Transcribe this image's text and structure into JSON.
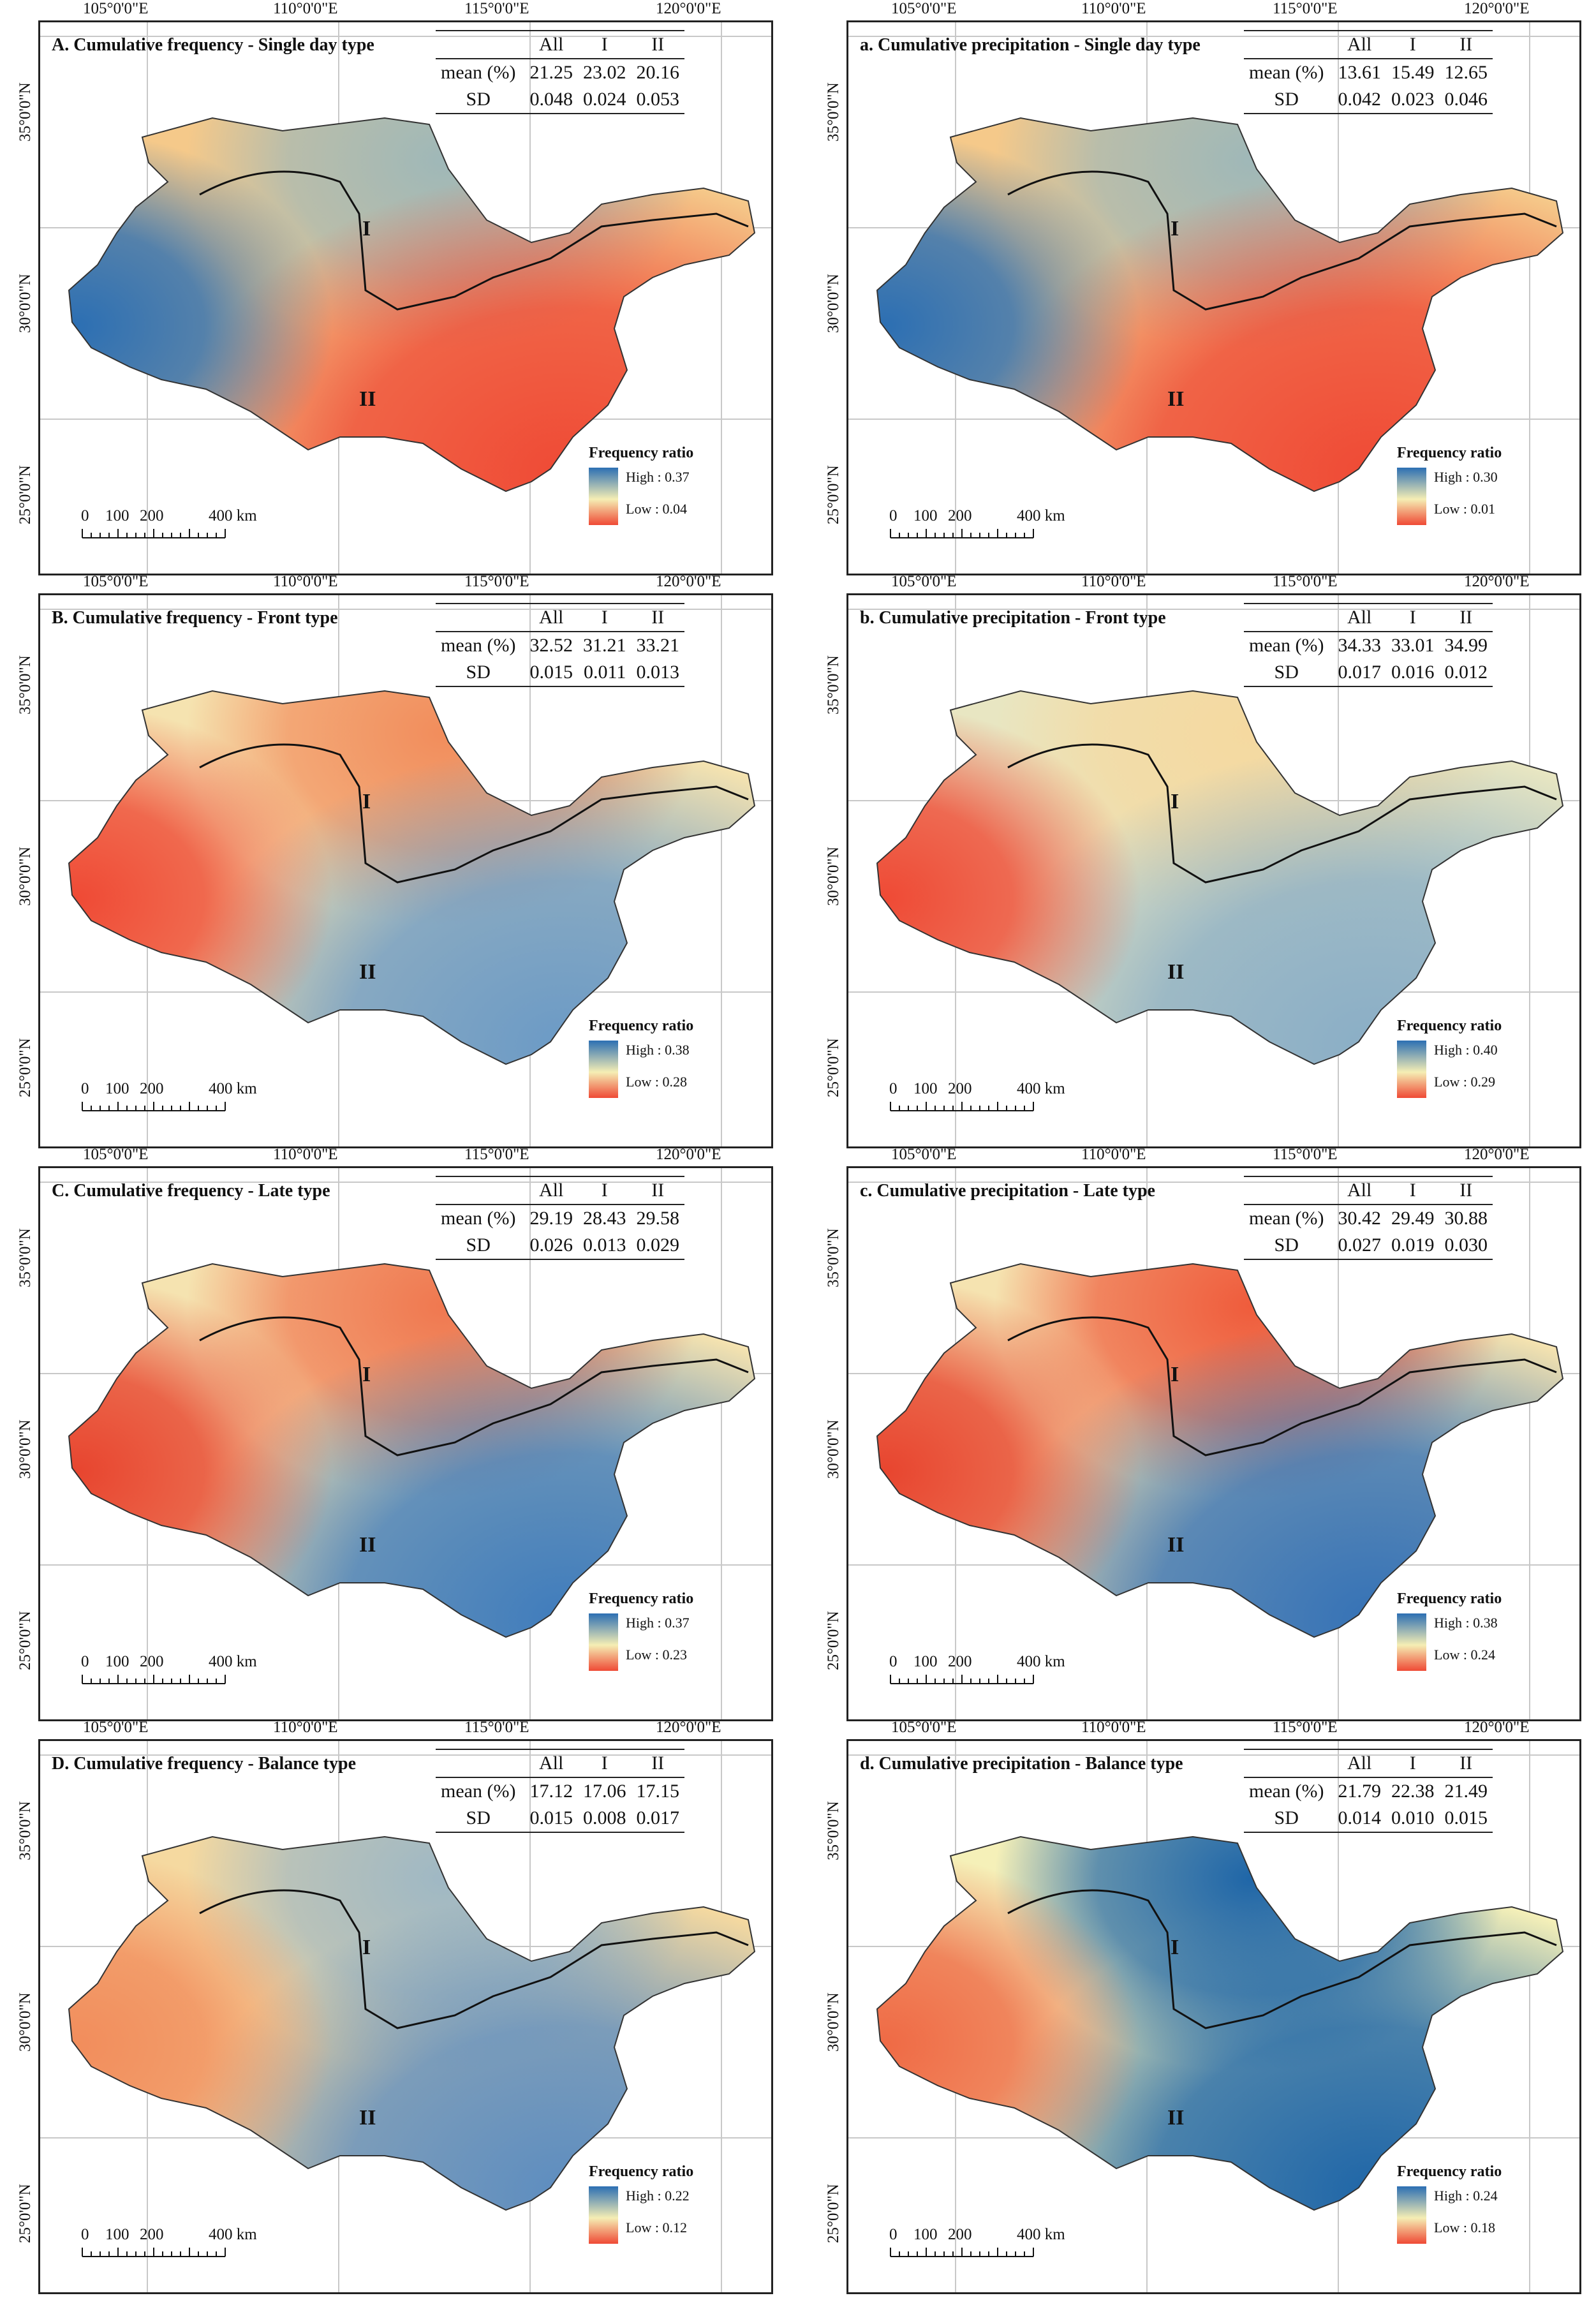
{
  "axes": {
    "lon_labels": [
      "105°0'0\"E",
      "110°0'0\"E",
      "115°0'0\"E",
      "120°0'0\"E"
    ],
    "lat_labels": [
      "35°0'0\"N",
      "30°0'0\"N",
      "25°0'0\"N"
    ]
  },
  "stat_header": {
    "row_label": "",
    "all": "All",
    "r1": "I",
    "r2": "II"
  },
  "stat_rows": {
    "mean": "mean (%)",
    "sd": "SD"
  },
  "region_labels": {
    "r1": "I",
    "r2": "II"
  },
  "legend": {
    "title": "Frequency ratio"
  },
  "scale_bar": {
    "labels": [
      "0",
      "100",
      "200",
      "400 km"
    ]
  },
  "panels": [
    {
      "id": "A",
      "title": "A. Cumulative frequency - Single day type",
      "mean": [
        "21.25",
        "23.02",
        "20.16"
      ],
      "sd": [
        "0.048",
        "0.024",
        "0.053"
      ],
      "high": "High : 0.37",
      "low": "Low : 0.04",
      "colors": {
        "west": "#2c6fb3",
        "north": "#9fb8b8",
        "south": "#ef4a35",
        "center": "#f5c98a"
      }
    },
    {
      "id": "a",
      "title": "a. Cumulative precipitation - Single day type",
      "mean": [
        "13.61",
        "15.49",
        "12.65"
      ],
      "sd": [
        "0.042",
        "0.023",
        "0.046"
      ],
      "high": "High : 0.30",
      "low": "Low : 0.01",
      "colors": {
        "west": "#2c6fb3",
        "north": "#9fb8b8",
        "south": "#ef4a35",
        "center": "#f5c98a"
      }
    },
    {
      "id": "B",
      "title": "B. Cumulative frequency - Front type",
      "mean": [
        "32.52",
        "31.21",
        "33.21"
      ],
      "sd": [
        "0.015",
        "0.011",
        "0.013"
      ],
      "high": "High : 0.38",
      "low": "Low : 0.28",
      "colors": {
        "west": "#ef4a35",
        "north": "#f28d5c",
        "south": "#6b9ac6",
        "center": "#f5e3b0"
      }
    },
    {
      "id": "b",
      "title": "b. Cumulative precipitation - Front type",
      "mean": [
        "34.33",
        "33.01",
        "34.99"
      ],
      "sd": [
        "0.017",
        "0.016",
        "0.012"
      ],
      "high": "High : 0.40",
      "low": "Low : 0.29",
      "colors": {
        "west": "#ef4a35",
        "north": "#f5d9a0",
        "south": "#8aaec6",
        "center": "#e8e6c2"
      }
    },
    {
      "id": "C",
      "title": "C. Cumulative frequency - Late type",
      "mean": [
        "29.19",
        "28.43",
        "29.58"
      ],
      "sd": [
        "0.026",
        "0.013",
        "0.029"
      ],
      "high": "High : 0.37",
      "low": "Low : 0.23",
      "colors": {
        "west": "#e8452f",
        "north": "#f07850",
        "south": "#3f7cbc",
        "center": "#f5e3b0"
      }
    },
    {
      "id": "c",
      "title": "c. Cumulative precipitation - Late type",
      "mean": [
        "30.42",
        "29.49",
        "30.88"
      ],
      "sd": [
        "0.027",
        "0.019",
        "0.030"
      ],
      "high": "High : 0.38",
      "low": "Low : 0.24",
      "colors": {
        "west": "#e8452f",
        "north": "#ef5c3c",
        "south": "#3572b6",
        "center": "#f5e3b0"
      }
    },
    {
      "id": "D",
      "title": "D. Cumulative frequency - Balance type",
      "mean": [
        "17.12",
        "17.06",
        "17.15"
      ],
      "sd": [
        "0.015",
        "0.008",
        "0.017"
      ],
      "high": "High : 0.22",
      "low": "Low : 0.12",
      "colors": {
        "west": "#f28d5c",
        "north": "#9fb8c4",
        "south": "#5d8dc0",
        "center": "#f5d9a0"
      }
    },
    {
      "id": "d",
      "title": "d. Cumulative precipitation - Balance type",
      "mean": [
        "21.79",
        "22.38",
        "21.49"
      ],
      "sd": [
        "0.014",
        "0.010",
        "0.015"
      ],
      "high": "High : 0.24",
      "low": "Low : 0.18",
      "colors": {
        "west": "#ef6a45",
        "north": "#1f66a8",
        "south": "#1f66a8",
        "center": "#f5f0b8"
      }
    }
  ]
}
